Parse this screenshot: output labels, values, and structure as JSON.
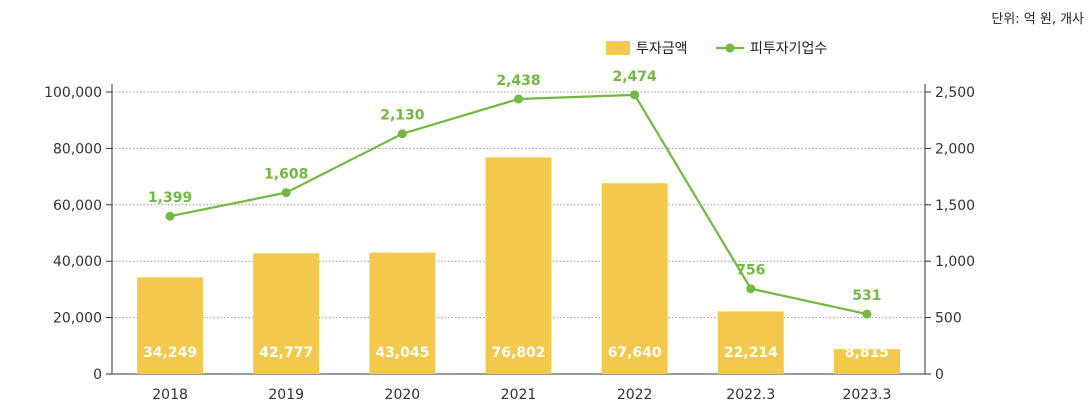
{
  "unit_note": "단위: 억 원, 개사",
  "chart_data": {
    "type": "bar",
    "categories": [
      "2018",
      "2019",
      "2020",
      "2021",
      "2022",
      "2022.3",
      "2023.3"
    ],
    "series": [
      {
        "name": "투자금액",
        "type": "bar",
        "axis": "left",
        "values": [
          34249,
          42777,
          43045,
          76802,
          67640,
          22214,
          8815
        ],
        "labels": [
          "34,249",
          "42,777",
          "43,045",
          "76,802",
          "67,640",
          "22,214",
          "8,815"
        ],
        "color": "#f2c94c"
      },
      {
        "name": "피투자기업수",
        "type": "line",
        "axis": "right",
        "values": [
          1399,
          1608,
          2130,
          2438,
          2474,
          756,
          531
        ],
        "labels": [
          "1,399",
          "1,608",
          "2,130",
          "2,438",
          "2,474",
          "756",
          "531"
        ],
        "color": "#72b843"
      }
    ],
    "y_left": {
      "range": [
        0,
        100000
      ],
      "ticks": [
        0,
        20000,
        40000,
        60000,
        80000,
        100000
      ],
      "tick_labels": [
        "0",
        "20,000",
        "40,000",
        "60,000",
        "80,000",
        "100,000"
      ]
    },
    "y_right": {
      "range": [
        0,
        2500
      ],
      "ticks": [
        0,
        500,
        1000,
        1500,
        2000,
        2500
      ],
      "tick_labels": [
        "0",
        "500",
        "1,000",
        "1,500",
        "2,000",
        "2,500"
      ]
    },
    "grid": "horizontal dotted",
    "legend_position": "top-right"
  }
}
